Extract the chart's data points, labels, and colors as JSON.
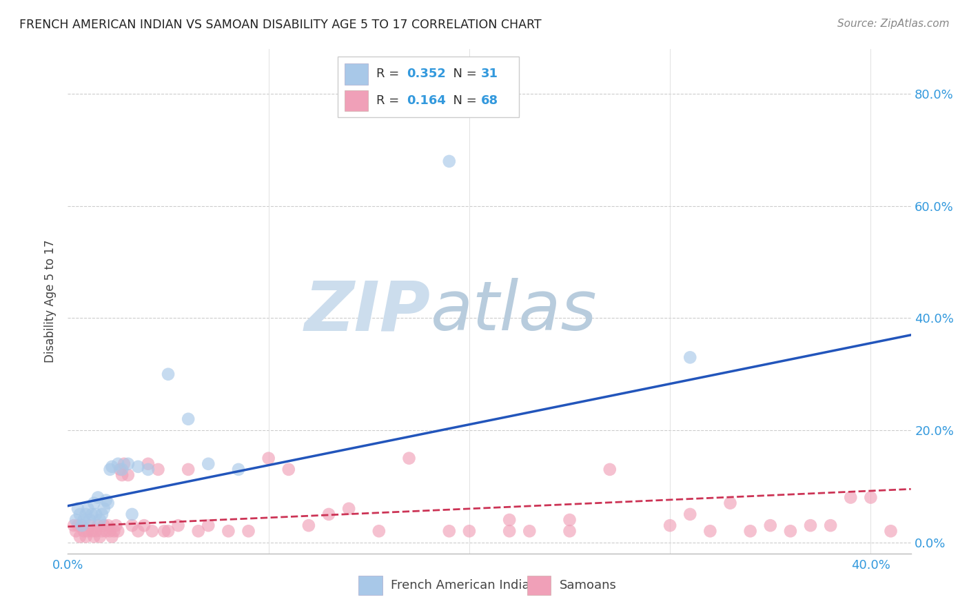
{
  "title": "FRENCH AMERICAN INDIAN VS SAMOAN DISABILITY AGE 5 TO 17 CORRELATION CHART",
  "source": "Source: ZipAtlas.com",
  "ylabel": "Disability Age 5 to 17",
  "xlim": [
    0.0,
    0.42
  ],
  "ylim": [
    -0.02,
    0.88
  ],
  "xticks": [
    0.0,
    0.1,
    0.2,
    0.3,
    0.4
  ],
  "xtick_labels": [
    "0.0%",
    "",
    "",
    "",
    "40.0%"
  ],
  "ytick_positions": [
    0.0,
    0.2,
    0.4,
    0.6,
    0.8
  ],
  "ytick_labels_right": [
    "0.0%",
    "20.0%",
    "40.0%",
    "60.0%",
    "80.0%"
  ],
  "blue_color": "#a8c8e8",
  "pink_color": "#f0a0b8",
  "blue_line_color": "#2255bb",
  "pink_line_color": "#cc3355",
  "background_color": "#ffffff",
  "watermark_zip": "ZIP",
  "watermark_atlas": "atlas",
  "watermark_color_zip": "#c8dff0",
  "watermark_color_atlas": "#b0ccdd",
  "blue_scatter_x": [
    0.004,
    0.005,
    0.006,
    0.007,
    0.008,
    0.009,
    0.01,
    0.011,
    0.012,
    0.013,
    0.014,
    0.015,
    0.016,
    0.017,
    0.018,
    0.019,
    0.02,
    0.021,
    0.022,
    0.025,
    0.027,
    0.03,
    0.032,
    0.035,
    0.04,
    0.05,
    0.06,
    0.07,
    0.085,
    0.19,
    0.31
  ],
  "blue_scatter_y": [
    0.04,
    0.06,
    0.05,
    0.03,
    0.04,
    0.05,
    0.06,
    0.04,
    0.05,
    0.07,
    0.05,
    0.08,
    0.04,
    0.05,
    0.06,
    0.075,
    0.07,
    0.13,
    0.135,
    0.14,
    0.13,
    0.14,
    0.05,
    0.135,
    0.13,
    0.3,
    0.22,
    0.14,
    0.13,
    0.68,
    0.33
  ],
  "pink_scatter_x": [
    0.003,
    0.004,
    0.005,
    0.006,
    0.007,
    0.008,
    0.009,
    0.01,
    0.011,
    0.012,
    0.013,
    0.014,
    0.015,
    0.016,
    0.017,
    0.018,
    0.019,
    0.02,
    0.021,
    0.022,
    0.023,
    0.024,
    0.025,
    0.026,
    0.027,
    0.028,
    0.03,
    0.032,
    0.035,
    0.038,
    0.04,
    0.042,
    0.045,
    0.048,
    0.05,
    0.055,
    0.06,
    0.065,
    0.07,
    0.08,
    0.09,
    0.1,
    0.11,
    0.12,
    0.13,
    0.14,
    0.155,
    0.17,
    0.19,
    0.2,
    0.22,
    0.25,
    0.27,
    0.3,
    0.31,
    0.32,
    0.33,
    0.34,
    0.35,
    0.36,
    0.37,
    0.38,
    0.39,
    0.4,
    0.41,
    0.22,
    0.23,
    0.25
  ],
  "pink_scatter_y": [
    0.03,
    0.02,
    0.03,
    0.01,
    0.03,
    0.02,
    0.01,
    0.02,
    0.03,
    0.02,
    0.01,
    0.02,
    0.03,
    0.01,
    0.02,
    0.03,
    0.02,
    0.03,
    0.02,
    0.01,
    0.02,
    0.03,
    0.02,
    0.13,
    0.12,
    0.14,
    0.12,
    0.03,
    0.02,
    0.03,
    0.14,
    0.02,
    0.13,
    0.02,
    0.02,
    0.03,
    0.13,
    0.02,
    0.03,
    0.02,
    0.02,
    0.15,
    0.13,
    0.03,
    0.05,
    0.06,
    0.02,
    0.15,
    0.02,
    0.02,
    0.02,
    0.02,
    0.13,
    0.03,
    0.05,
    0.02,
    0.07,
    0.02,
    0.03,
    0.02,
    0.03,
    0.03,
    0.08,
    0.08,
    0.02,
    0.04,
    0.02,
    0.04
  ],
  "blue_line_x0": 0.0,
  "blue_line_x1": 0.42,
  "blue_line_y0": 0.065,
  "blue_line_y1": 0.37,
  "pink_line_x0": 0.0,
  "pink_line_x1": 0.42,
  "pink_line_y0": 0.028,
  "pink_line_y1": 0.095,
  "legend_blue_R": "0.352",
  "legend_blue_N": "31",
  "legend_pink_R": "0.164",
  "legend_pink_N": "68"
}
